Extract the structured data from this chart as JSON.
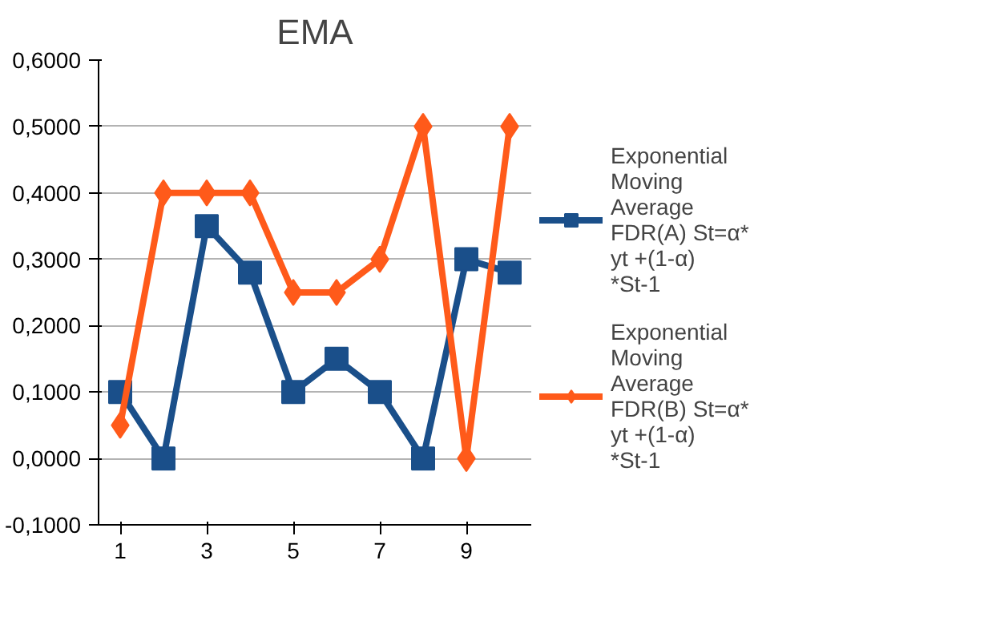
{
  "chart_data": {
    "type": "line",
    "title": "EMA",
    "x": [
      1,
      2,
      3,
      4,
      5,
      6,
      7,
      8,
      9,
      10
    ],
    "xlim": [
      0.5,
      10.5
    ],
    "xticks": [
      1,
      3,
      5,
      7,
      9
    ],
    "ylim": [
      -0.1,
      0.6
    ],
    "yticks": [
      {
        "value": -0.1,
        "label": "-0,1000"
      },
      {
        "value": 0,
        "label": "0,0000"
      },
      {
        "value": 0.1,
        "label": "0,1000"
      },
      {
        "value": 0.2,
        "label": "0,2000"
      },
      {
        "value": 0.3,
        "label": "0,3000"
      },
      {
        "value": 0.4,
        "label": "0,4000"
      },
      {
        "value": 0.5,
        "label": "0,5000"
      },
      {
        "value": 0.6,
        "label": "0,6000"
      }
    ],
    "grid": "y",
    "legend": "right",
    "line_style": "solid",
    "series": [
      {
        "name": "Exponential Moving Average FDR(A) St=α* yt +(1-α) *St-1",
        "color": "#1a4f8a",
        "marker": "square",
        "values": [
          0.1,
          0.0,
          0.35,
          0.28,
          0.1,
          0.15,
          0.1,
          0.0,
          0.3,
          0.28
        ]
      },
      {
        "name": "Exponential Moving Average FDR(B) St=α* yt +(1-α) *St-1",
        "color": "#ff5a1a",
        "marker": "diamond",
        "values": [
          0.05,
          0.4,
          0.4,
          0.4,
          0.25,
          0.25,
          0.3,
          0.5,
          0.0,
          0.5
        ]
      }
    ]
  }
}
